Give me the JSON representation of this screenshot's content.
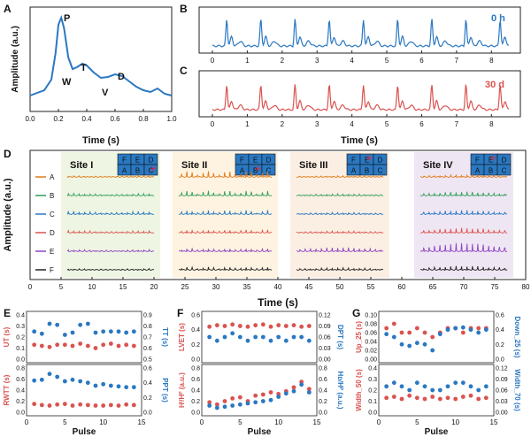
{
  "colors": {
    "blue": "#2a78c2",
    "red": "#d9534f",
    "orange": "#e07b1a",
    "green": "#2f9e5a",
    "purple": "#8e44c2",
    "black": "#222222",
    "siteI": "#eef5e2",
    "siteII": "#fdf3e0",
    "siteIII": "#fbeee2",
    "siteIV": "#efe6f3"
  },
  "panels": {
    "A": "A",
    "B": "B",
    "C": "C",
    "D": "D",
    "E": "E",
    "F": "F",
    "G": "G"
  },
  "chart_data": [
    {
      "id": "A",
      "type": "line",
      "xlabel": "Time (s)",
      "ylabel": "Amplitude (a.u.)",
      "xlim": [
        0.0,
        1.0
      ],
      "xticks": [
        "0.0",
        "0.2",
        "0.4",
        "0.6",
        "0.8",
        "1.0"
      ],
      "x": [
        0.0,
        0.05,
        0.1,
        0.15,
        0.18,
        0.2,
        0.22,
        0.24,
        0.27,
        0.3,
        0.33,
        0.37,
        0.4,
        0.45,
        0.5,
        0.55,
        0.6,
        0.65,
        0.7,
        0.75,
        0.8,
        0.85,
        0.9,
        0.95,
        1.0
      ],
      "y": [
        0.12,
        0.15,
        0.18,
        0.3,
        0.6,
        0.92,
        1.0,
        0.88,
        0.55,
        0.42,
        0.44,
        0.48,
        0.46,
        0.38,
        0.32,
        0.33,
        0.36,
        0.34,
        0.28,
        0.22,
        0.18,
        0.16,
        0.2,
        0.14,
        0.12
      ],
      "annotations": [
        "P",
        "T",
        "W",
        "D",
        "V"
      ]
    },
    {
      "id": "B",
      "type": "line",
      "label": "0 h",
      "color": "blue",
      "xlim": [
        0,
        8.5
      ],
      "xticks": [
        "0",
        "1",
        "2",
        "3",
        "4",
        "5",
        "6",
        "7",
        "8"
      ]
    },
    {
      "id": "C",
      "type": "line",
      "label": "30 d",
      "color": "red",
      "xlim": [
        0,
        8.5
      ],
      "xticks": [
        "0",
        "1",
        "2",
        "3",
        "4",
        "5",
        "6",
        "7",
        "8"
      ],
      "xlabel": "Time (s)"
    },
    {
      "id": "D",
      "type": "line",
      "xlabel": "Time (s)",
      "ylabel": "Amplitude (a.u.)",
      "xlim": [
        0,
        80
      ],
      "xticks": [
        "0",
        "5",
        "10",
        "15",
        "20",
        "25",
        "30",
        "35",
        "40",
        "45",
        "50",
        "55",
        "60",
        "65",
        "70",
        "75",
        "80"
      ],
      "series": [
        {
          "name": "A",
          "color": "orange"
        },
        {
          "name": "B",
          "color": "green"
        },
        {
          "name": "C",
          "color": "blue"
        },
        {
          "name": "D",
          "color": "red"
        },
        {
          "name": "E",
          "color": "purple"
        },
        {
          "name": "F",
          "color": "black"
        }
      ],
      "sites": [
        "Site I",
        "Site II",
        "Site III",
        "Site IV"
      ],
      "grid_labels": [
        "F",
        "E",
        "D",
        "A",
        "B",
        "C"
      ]
    },
    {
      "id": "E",
      "type": "scatter",
      "xlabel": "Pulse",
      "xlim": [
        0,
        15
      ],
      "xticks": [
        "0",
        "5",
        "10",
        "15"
      ],
      "top": {
        "ylabel_left": "UT (s)",
        "ylabel_right": "TT (s)",
        "yticks_left": [
          "0.0",
          "0.1",
          "0.2",
          "0.3",
          "0.4"
        ],
        "yticks_right": [
          "0.5",
          "0.6",
          "0.7",
          "0.8",
          "0.9"
        ],
        "left_values": [
          0.13,
          0.12,
          0.11,
          0.13,
          0.13,
          0.12,
          0.14,
          0.12,
          0.1,
          0.13,
          0.14,
          0.12,
          0.13,
          0.12
        ],
        "right_values": [
          0.75,
          0.73,
          0.82,
          0.81,
          0.72,
          0.74,
          0.81,
          0.82,
          0.74,
          0.75,
          0.75,
          0.75,
          0.74,
          0.75
        ]
      },
      "bottom": {
        "ylabel_left": "RWTT (s)",
        "ylabel_right": "PPT (s)",
        "yticks_left": [
          "0.0",
          "0.2",
          "0.4",
          "0.6",
          "0.8"
        ],
        "yticks_right": [
          "0.0",
          "0.2",
          "0.4",
          "0.6"
        ],
        "left_values": [
          0.15,
          0.13,
          0.12,
          0.14,
          0.15,
          0.12,
          0.14,
          0.13,
          0.12,
          0.12,
          0.13,
          0.12,
          0.14,
          0.13
        ],
        "right_values": [
          0.43,
          0.44,
          0.52,
          0.48,
          0.42,
          0.44,
          0.42,
          0.4,
          0.36,
          0.38,
          0.36,
          0.35,
          0.34,
          0.34
        ]
      }
    },
    {
      "id": "F",
      "type": "scatter",
      "xlabel": "Pulse",
      "xlim": [
        0,
        15
      ],
      "xticks": [
        "0",
        "5",
        "10",
        "15"
      ],
      "top": {
        "ylabel_left": "LVET (s)",
        "ylabel_right": "DPT (s)",
        "yticks_left": [
          "0.0",
          "0.2",
          "0.4",
          "0.6"
        ],
        "yticks_right": [
          "0.00",
          "0.03",
          "0.06",
          "0.09",
          "0.12"
        ],
        "left_values": [
          0.44,
          0.46,
          0.45,
          0.47,
          0.45,
          0.44,
          0.46,
          0.47,
          0.44,
          0.46,
          0.45,
          0.46,
          0.44,
          0.45
        ],
        "right_values": [
          0.06,
          0.05,
          0.06,
          0.07,
          0.06,
          0.05,
          0.06,
          0.06,
          0.05,
          0.06,
          0.05,
          0.06,
          0.06,
          0.05
        ]
      },
      "bottom": {
        "ylabel_left": "Hᴵ/Hᴾ (a.u.)",
        "ylabel_right": "Hᴅ/Hᴾ (a.u.)",
        "yticks_left": [
          "0.0",
          "0.2",
          "0.4",
          "0.6",
          "0.8"
        ],
        "yticks_right": [
          "0.0",
          "0.2",
          "0.4",
          "0.6",
          "0.8"
        ],
        "left_values": [
          0.18,
          0.14,
          0.2,
          0.25,
          0.27,
          0.2,
          0.3,
          0.32,
          0.36,
          0.33,
          0.38,
          0.45,
          0.55,
          0.42
        ],
        "right_values": [
          0.12,
          0.08,
          0.1,
          0.12,
          0.14,
          0.16,
          0.18,
          0.2,
          0.22,
          0.28,
          0.34,
          0.38,
          0.5,
          0.36
        ]
      }
    },
    {
      "id": "G",
      "type": "scatter",
      "xlabel": "Pulse",
      "xlim": [
        0,
        15
      ],
      "xticks": [
        "0",
        "5",
        "10",
        "15"
      ],
      "top": {
        "ylabel_left": "Up_25 (s)",
        "ylabel_right": "Down_25 (s)",
        "yticks_left": [
          "0.00",
          "0.02",
          "0.04",
          "0.06",
          "0.08",
          "0.10"
        ],
        "yticks_right": [
          "0.0",
          "0.2",
          "0.4",
          "0.6"
        ],
        "left_values": [
          0.07,
          0.08,
          0.06,
          0.06,
          0.07,
          0.06,
          0.05,
          0.06,
          0.07,
          0.07,
          0.06,
          0.07,
          0.07,
          0.07
        ],
        "right_values": [
          0.34,
          0.3,
          0.2,
          0.18,
          0.22,
          0.2,
          0.12,
          0.34,
          0.4,
          0.42,
          0.43,
          0.4,
          0.36,
          0.4
        ]
      },
      "bottom": {
        "ylabel_left": "Width_50 (s)",
        "ylabel_right": "Width_70 (s)",
        "yticks_left": [
          "0.0",
          "0.1",
          "0.2",
          "0.3",
          "0.4"
        ],
        "yticks_right": [
          "0.00",
          "0.03",
          "0.06",
          "0.09",
          "0.12"
        ],
        "left_values": [
          0.13,
          0.14,
          0.12,
          0.15,
          0.13,
          0.12,
          0.14,
          0.12,
          0.13,
          0.12,
          0.14,
          0.15,
          0.12,
          0.13
        ],
        "right_values": [
          0.07,
          0.08,
          0.07,
          0.06,
          0.08,
          0.07,
          0.06,
          0.06,
          0.07,
          0.08,
          0.08,
          0.07,
          0.06,
          0.07
        ]
      }
    }
  ]
}
